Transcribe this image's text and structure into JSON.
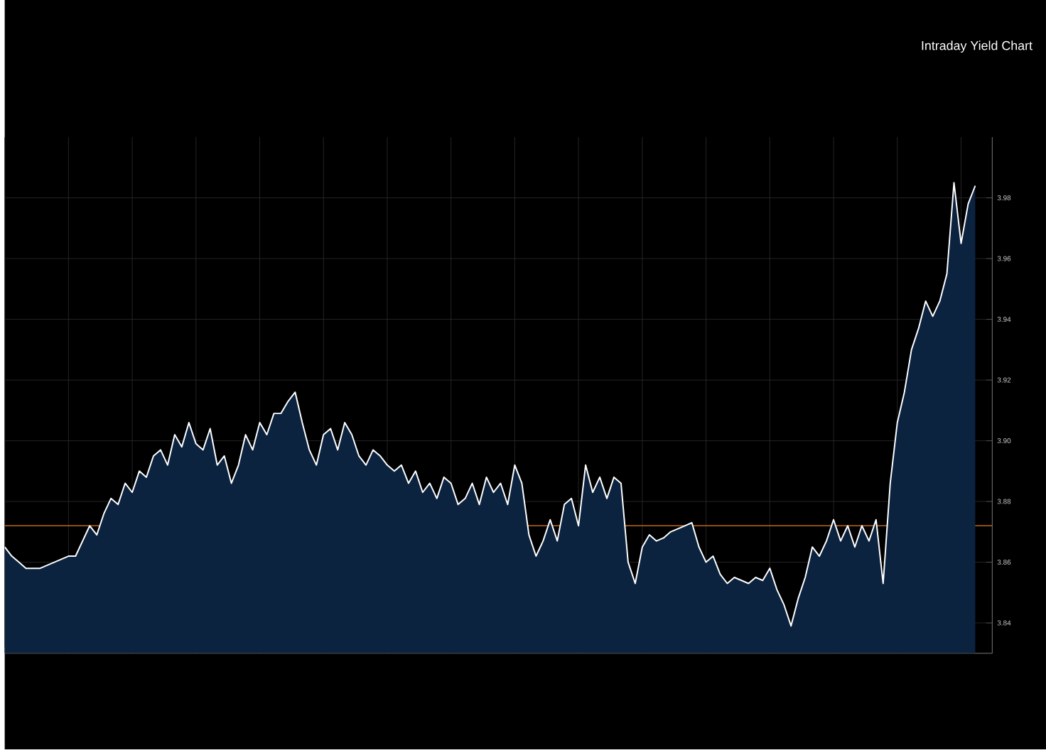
{
  "chart_data": {
    "type": "area",
    "title": "Intraday Yield Chart",
    "categories": [
      null,
      null,
      null,
      null,
      null,
      null,
      null,
      null,
      null,
      null,
      null,
      null,
      null,
      null,
      null,
      null,
      null,
      null,
      null,
      null,
      null,
      null,
      null,
      null,
      null,
      null,
      null,
      null,
      null,
      null,
      null,
      null,
      null,
      null,
      null,
      null,
      null,
      null,
      null,
      null,
      null,
      null,
      null,
      null,
      null,
      null,
      null,
      null,
      null,
      null,
      null,
      null,
      null,
      null,
      null,
      null,
      null,
      null,
      null,
      null,
      null,
      null,
      null,
      null,
      null,
      null,
      null,
      null,
      null,
      null,
      null,
      null,
      null,
      null,
      null,
      null,
      null,
      null,
      null,
      null,
      null,
      null,
      null,
      null,
      null,
      null,
      null,
      null,
      null,
      null,
      null,
      null,
      null,
      null,
      null,
      null,
      null,
      null,
      null,
      null,
      null,
      null,
      null,
      null,
      null,
      null,
      null,
      null,
      null,
      null,
      null,
      null,
      null,
      null,
      null,
      null,
      null,
      null,
      null,
      null,
      null,
      null,
      null,
      null,
      null,
      null,
      null,
      null,
      null,
      null,
      null,
      null,
      null,
      null,
      null,
      null,
      null,
      null
    ],
    "series": [
      {
        "color": "#0c2340",
        "values": [
          3.865,
          3.862,
          3.86,
          3.858,
          3.858,
          3.858,
          3.859,
          3.86,
          3.861,
          3.862,
          3.862,
          3.867,
          3.872,
          3.869,
          3.876,
          3.881,
          3.879,
          3.886,
          3.883,
          3.89,
          3.888,
          3.895,
          3.897,
          3.892,
          3.902,
          3.898,
          3.906,
          3.899,
          3.897,
          3.904,
          3.892,
          3.895,
          3.886,
          3.892,
          3.902,
          3.897,
          3.906,
          3.902,
          3.909,
          3.909,
          3.913,
          3.916,
          3.906,
          3.897,
          3.892,
          3.902,
          3.904,
          3.897,
          3.906,
          3.902,
          3.895,
          3.892,
          3.897,
          3.895,
          3.892,
          3.89,
          3.892,
          3.886,
          3.89,
          3.883,
          3.886,
          3.881,
          3.888,
          3.886,
          3.879,
          3.881,
          3.886,
          3.879,
          3.888,
          3.883,
          3.886,
          3.879,
          3.892,
          3.886,
          3.869,
          3.862,
          3.867,
          3.874,
          3.867,
          3.879,
          3.881,
          3.872,
          3.892,
          3.883,
          3.888,
          3.881,
          3.888,
          3.886,
          3.86,
          3.853,
          3.865,
          3.869,
          3.867,
          3.868,
          3.87,
          3.871,
          3.872,
          3.873,
          3.865,
          3.86,
          3.862,
          3.856,
          3.853,
          3.855,
          3.854,
          3.853,
          3.855,
          3.854,
          3.858,
          3.851,
          3.846,
          3.839,
          3.848,
          3.855,
          3.865,
          3.862,
          3.867,
          3.874,
          3.867,
          3.872,
          3.865,
          3.872,
          3.867,
          3.874,
          3.853,
          3.886,
          3.906,
          3.916,
          3.93,
          3.937,
          3.946,
          3.941,
          3.946,
          3.955,
          3.985,
          3.965,
          3.978,
          3.984
        ]
      }
    ],
    "ylim": [
      3.83,
      4.0
    ],
    "yticks": [
      {
        "value": 3.84,
        "label": "3.84"
      },
      {
        "value": 3.86,
        "label": "3.86"
      },
      {
        "value": 3.88,
        "label": "3.88"
      },
      {
        "value": 3.9,
        "label": "3.90"
      },
      {
        "value": 3.92,
        "label": "3.92"
      },
      {
        "value": 3.94,
        "label": "3.94"
      },
      {
        "value": 3.96,
        "label": "3.96"
      },
      {
        "value": 3.98,
        "label": "3.98"
      }
    ],
    "grid": true,
    "tick_labels": "y",
    "ref_lines": [
      {
        "axis": "y",
        "value": 3.872,
        "color": "#b8661a"
      }
    ]
  }
}
